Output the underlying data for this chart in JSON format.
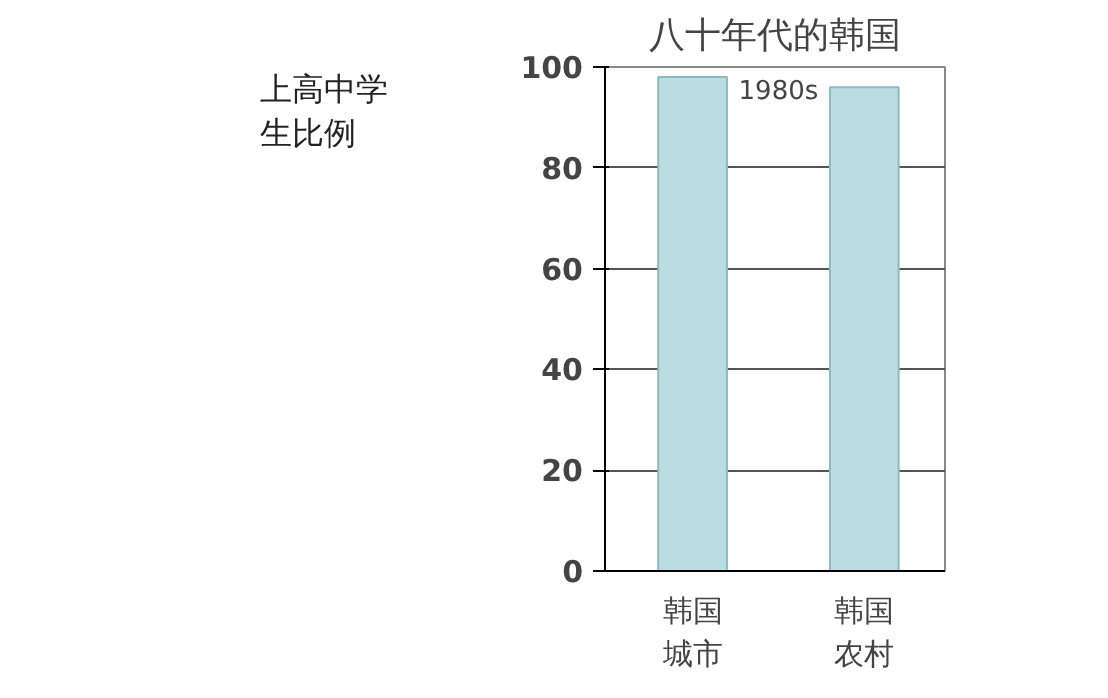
{
  "chart_data": {
    "type": "bar",
    "title": "八十年代的韩国",
    "ylabel": "上高中学生比例",
    "categories": [
      "韩国城市",
      "韩国农村"
    ],
    "values": [
      98,
      96
    ],
    "color": "#b9dde3",
    "ylim": [
      0,
      100
    ],
    "yticks": [
      0,
      20,
      40,
      60,
      80,
      100
    ],
    "grid": "y",
    "annotations": [
      "1980s"
    ]
  }
}
